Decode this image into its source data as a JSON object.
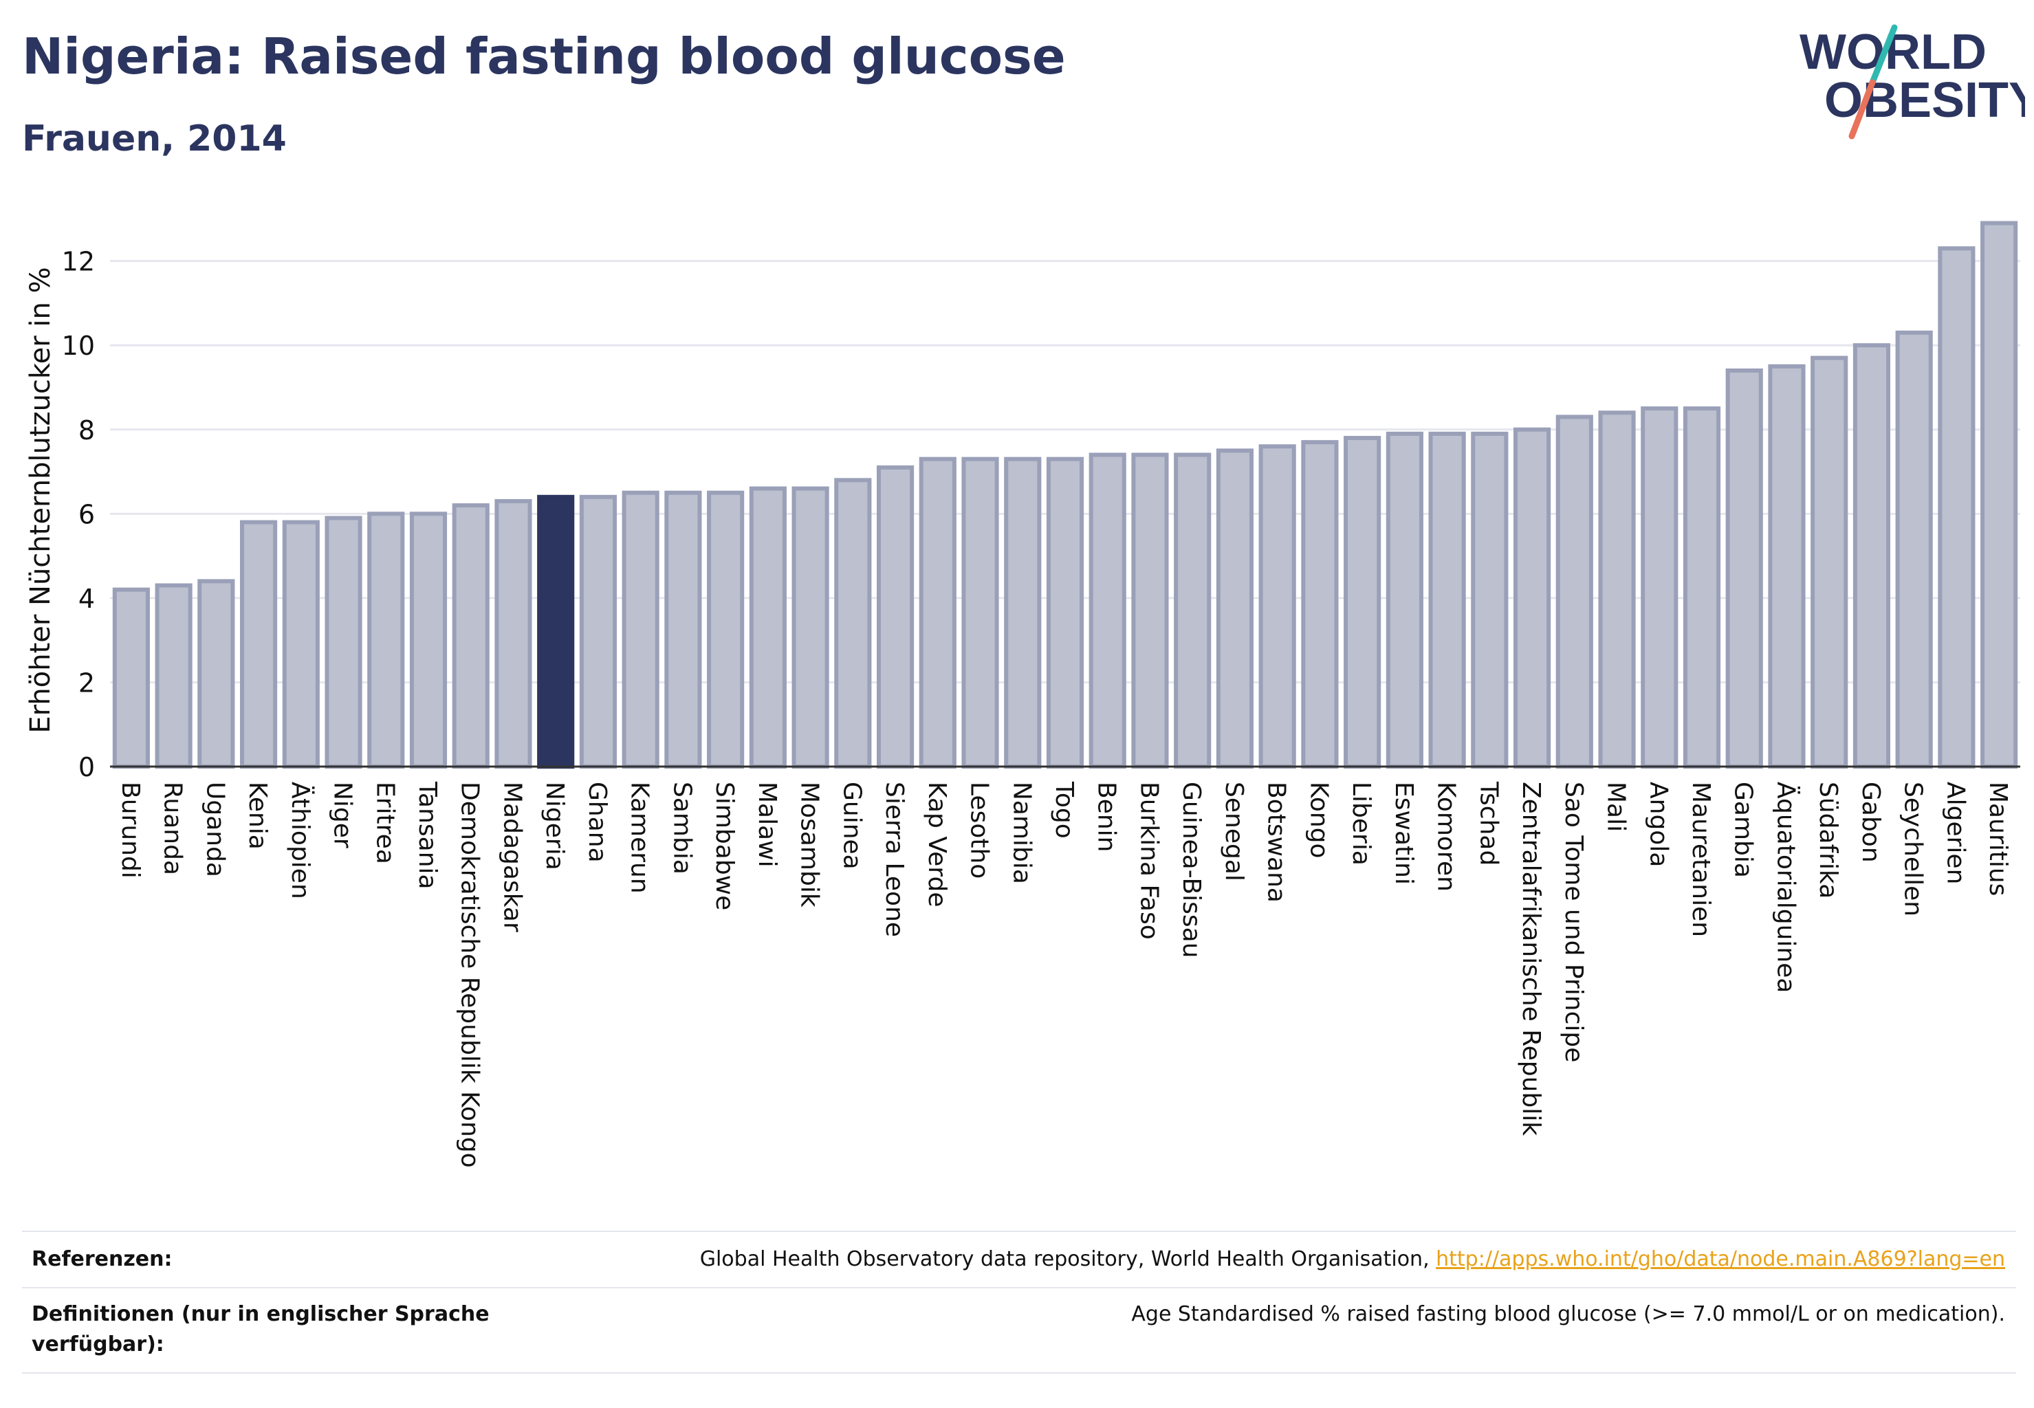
{
  "title": "Nigeria: Raised fasting blood glucose",
  "subtitle": "Frauen, 2014",
  "logo": {
    "line1": "WORLD",
    "line2": "OBESITY",
    "colors": {
      "text": "#2b355f",
      "slash_top": "#2fb8b0",
      "slash_bottom": "#e8725a"
    }
  },
  "colors": {
    "bar": "#bcc0cf",
    "bar_edge": "#9aa0b8",
    "highlight": "#2b355f",
    "grid": "#e6e7ee",
    "link": "#e8a21a"
  },
  "chart_data": {
    "type": "bar",
    "ylabel": "Erhöhter Nüchternblutzucker in %",
    "ylim": [
      0,
      13.3
    ],
    "yticks": [
      0,
      2,
      4,
      6,
      8,
      10,
      12
    ],
    "grid": true,
    "highlight": "Nigeria",
    "categories": [
      "Burundi",
      "Ruanda",
      "Uganda",
      "Kenia",
      "Äthiopien",
      "Niger",
      "Eritrea",
      "Tansania",
      "Demokratische Republik Kongo",
      "Madagaskar",
      "Nigeria",
      "Ghana",
      "Kamerun",
      "Sambia",
      "Simbabwe",
      "Malawi",
      "Mosambik",
      "Guinea",
      "Sierra Leone",
      "Kap Verde",
      "Lesotho",
      "Namibia",
      "Togo",
      "Benin",
      "Burkina Faso",
      "Guinea-Bissau",
      "Senegal",
      "Botswana",
      "Kongo",
      "Liberia",
      "Eswatini",
      "Komoren",
      "Tschad",
      "Zentralafrikanische Republik",
      "Sao Tome und Principe",
      "Mali",
      "Angola",
      "Mauretanien",
      "Gambia",
      "Äquatorialguinea",
      "Südafrika",
      "Gabon",
      "Seychellen",
      "Algerien",
      "Mauritius"
    ],
    "values": [
      4.2,
      4.3,
      4.4,
      5.8,
      5.8,
      5.9,
      6.0,
      6.0,
      6.2,
      6.3,
      6.4,
      6.4,
      6.5,
      6.5,
      6.5,
      6.6,
      6.6,
      6.8,
      7.1,
      7.3,
      7.3,
      7.3,
      7.3,
      7.4,
      7.4,
      7.4,
      7.5,
      7.6,
      7.7,
      7.8,
      7.9,
      7.9,
      7.9,
      8.0,
      8.3,
      8.4,
      8.5,
      8.5,
      9.4,
      9.5,
      9.7,
      10.0,
      10.3,
      12.3,
      12.9
    ]
  },
  "references": {
    "ref_label": "Referenzen:",
    "ref_text": "Global Health Observatory data repository, World Health Organisation, ",
    "ref_link": "http://apps.who.int/gho/data/node.main.A869?lang=en",
    "def_label": "Definitionen (nur in englischer Sprache verfügbar):",
    "def_text": "Age Standardised % raised fasting blood glucose (>= 7.0 mmol/L or on medication)."
  }
}
